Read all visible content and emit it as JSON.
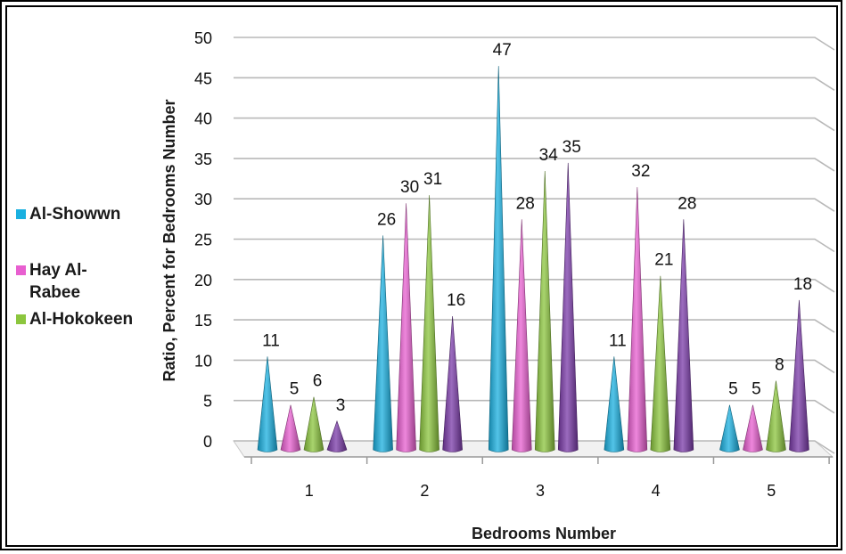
{
  "chart_data": {
    "type": "bar",
    "categories": [
      "1",
      "2",
      "3",
      "4",
      "5"
    ],
    "series": [
      {
        "name": "Al-Showwn",
        "color": "#1ab0e0",
        "values": [
          11,
          26,
          47,
          11,
          5
        ]
      },
      {
        "name": "Hay Al-Rabee",
        "color": "#e85fd0",
        "values": [
          5,
          30,
          28,
          32,
          5
        ]
      },
      {
        "name": "Al-Hokokeen",
        "color": "#8cc63e",
        "values": [
          6,
          31,
          34,
          21,
          8
        ]
      },
      {
        "name": "",
        "color": "#7a3aa8",
        "values": [
          3,
          16,
          35,
          28,
          18
        ]
      }
    ],
    "xlabel": "Bedrooms Number",
    "ylabel": "Ratio, Percent for Bedrooms Number",
    "ylim": [
      0,
      50
    ],
    "yticks": [
      "0",
      "5",
      "10",
      "15",
      "20",
      "25",
      "30",
      "35",
      "40",
      "45",
      "50"
    ],
    "grid": true,
    "legend_position": "left"
  }
}
